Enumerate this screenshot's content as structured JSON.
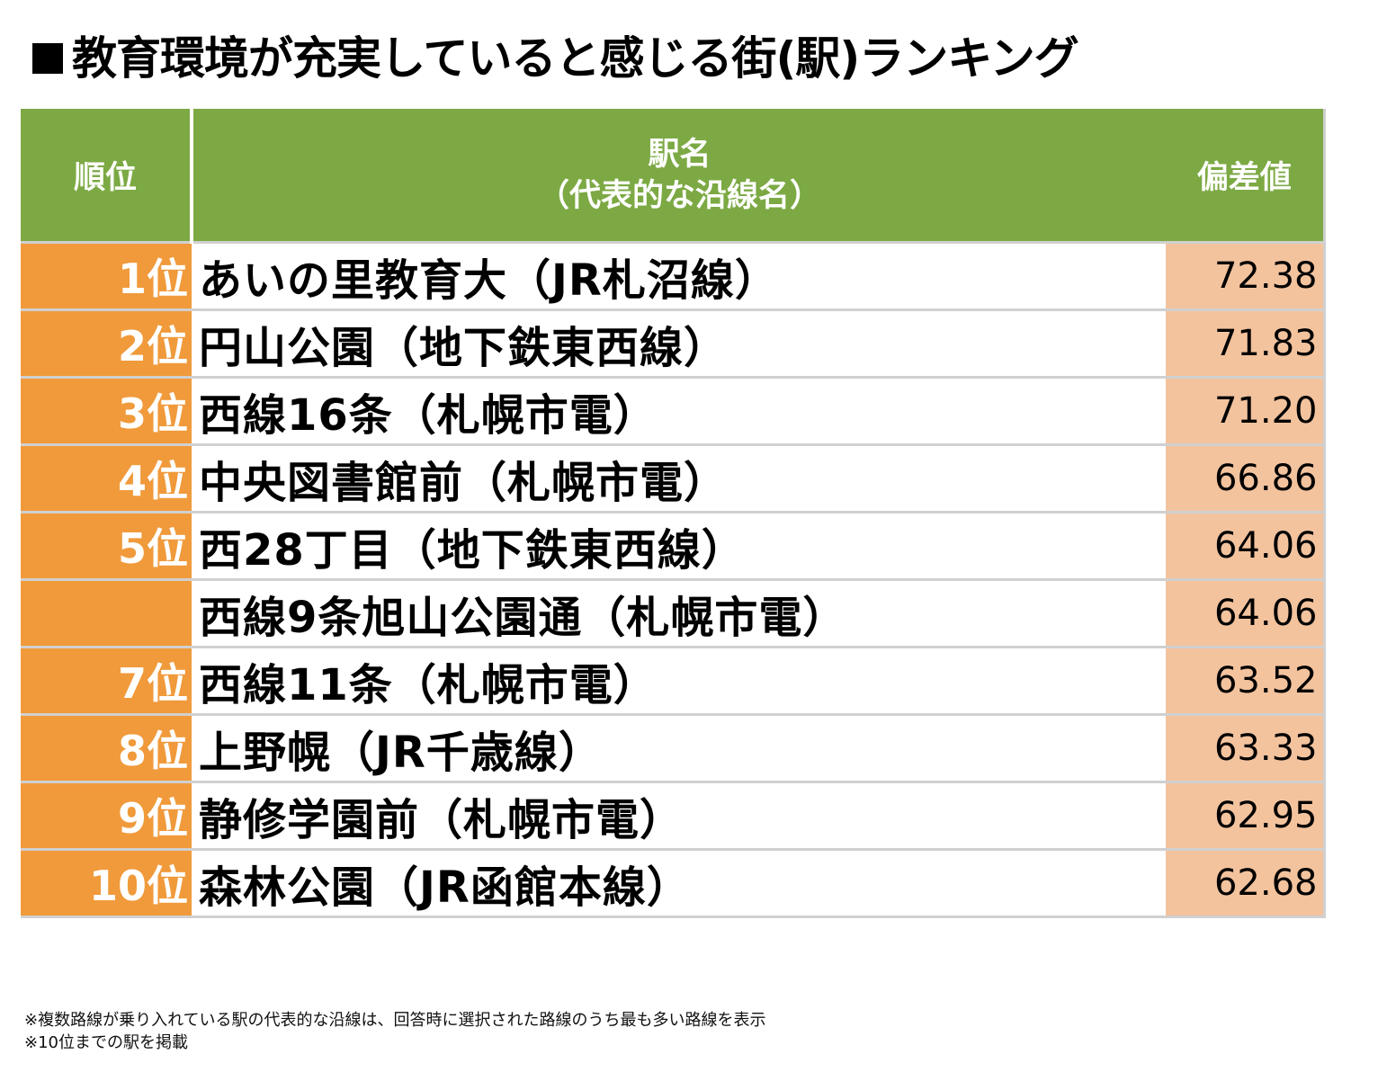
{
  "title": "教育環境が充実していると感じる街(駅)ランキング",
  "table": {
    "headers": {
      "rank": "順位",
      "station_line1": "駅名",
      "station_line2": "（代表的な沿線名）",
      "score": "偏差値"
    },
    "rows": [
      {
        "rank": "1位",
        "station": "あいの里教育大（JR札沼線）",
        "score": "72.38"
      },
      {
        "rank": "2位",
        "station": "円山公園（地下鉄東西線）",
        "score": "71.83"
      },
      {
        "rank": "3位",
        "station": "西線16条（札幌市電）",
        "score": "71.20"
      },
      {
        "rank": "4位",
        "station": "中央図書館前（札幌市電）",
        "score": "66.86"
      },
      {
        "rank": "5位",
        "station": "西28丁目（地下鉄東西線）",
        "score": "64.06"
      },
      {
        "rank": "",
        "station": "西線9条旭山公園通（札幌市電）",
        "score": "64.06"
      },
      {
        "rank": "7位",
        "station": "西線11条（札幌市電）",
        "score": "63.52"
      },
      {
        "rank": "8位",
        "station": "上野幌（JR千歳線）",
        "score": "63.33"
      },
      {
        "rank": "9位",
        "station": "静修学園前（札幌市電）",
        "score": "62.95"
      },
      {
        "rank": "10位",
        "station": "森林公園（JR函館本線）",
        "score": "62.68"
      }
    ]
  },
  "notes": [
    "※複数路線が乗り入れている駅の代表的な沿線は、回答時に選択された路線のうち最も多い路線を表示",
    "※10位までの駅を掲載"
  ],
  "colors": {
    "header_bg": "#7ca944",
    "rank_bg": "#f09a3b",
    "score_bg": "#f3c39e"
  }
}
